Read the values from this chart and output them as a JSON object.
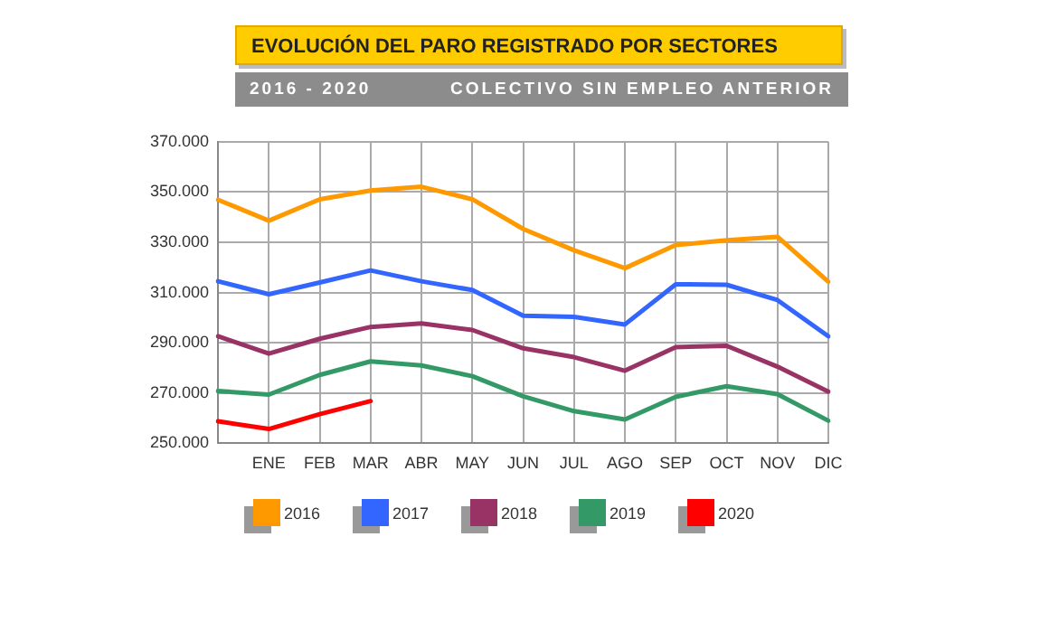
{
  "chart_data": {
    "type": "line",
    "title": "EVOLUCIÓN DEL PARO REGISTRADO POR SECTORES",
    "subtitle": "2016 - 2020",
    "annotations": [
      "COLECTIVO SIN EMPLEO ANTERIOR"
    ],
    "categories": [
      null,
      "ENE",
      "FEB",
      "MAR",
      "ABR",
      "MAY",
      "JUN",
      "JUL",
      "AGO",
      "SEP",
      "OCT",
      "NOV",
      "DIC"
    ],
    "series": [
      {
        "name": "2016",
        "color": "#ff9900",
        "values": [
          346900,
          338600,
          347100,
          350600,
          352100,
          347100,
          335300,
          326800,
          319700,
          328900,
          330800,
          332200,
          314300
        ]
      },
      {
        "name": "2017",
        "color": "#3366ff",
        "values": [
          314500,
          309300,
          314000,
          318800,
          314500,
          311000,
          300800,
          300300,
          297300,
          313300,
          313100,
          307000,
          292600
        ]
      },
      {
        "name": "2018",
        "color": "#993366",
        "values": [
          292600,
          285700,
          291600,
          296300,
          297700,
          295100,
          287800,
          284300,
          278900,
          288300,
          288800,
          280500,
          270600
        ]
      },
      {
        "name": "2019",
        "color": "#339966",
        "values": [
          270800,
          269400,
          277200,
          282600,
          281000,
          276700,
          268700,
          262800,
          259500,
          268500,
          272700,
          269600,
          259000
        ]
      },
      {
        "name": "2020",
        "color": "#ff0000",
        "values": [
          258800,
          255700,
          261600,
          266800,
          null,
          null,
          null,
          null,
          null,
          null,
          null,
          null,
          null
        ]
      }
    ],
    "ylim": [
      250000,
      370000
    ],
    "yticks": [
      {
        "value": 250000,
        "label": "250.000"
      },
      {
        "value": 270000,
        "label": "270.000"
      },
      {
        "value": 290000,
        "label": "290.000"
      },
      {
        "value": 310000,
        "label": "310.000"
      },
      {
        "value": 330000,
        "label": "330.000"
      },
      {
        "value": 350000,
        "label": "350.000"
      },
      {
        "value": 370000,
        "label": "370.000"
      }
    ],
    "grid": true,
    "legend": "bottom",
    "marker": "none",
    "line_style": "solid"
  }
}
